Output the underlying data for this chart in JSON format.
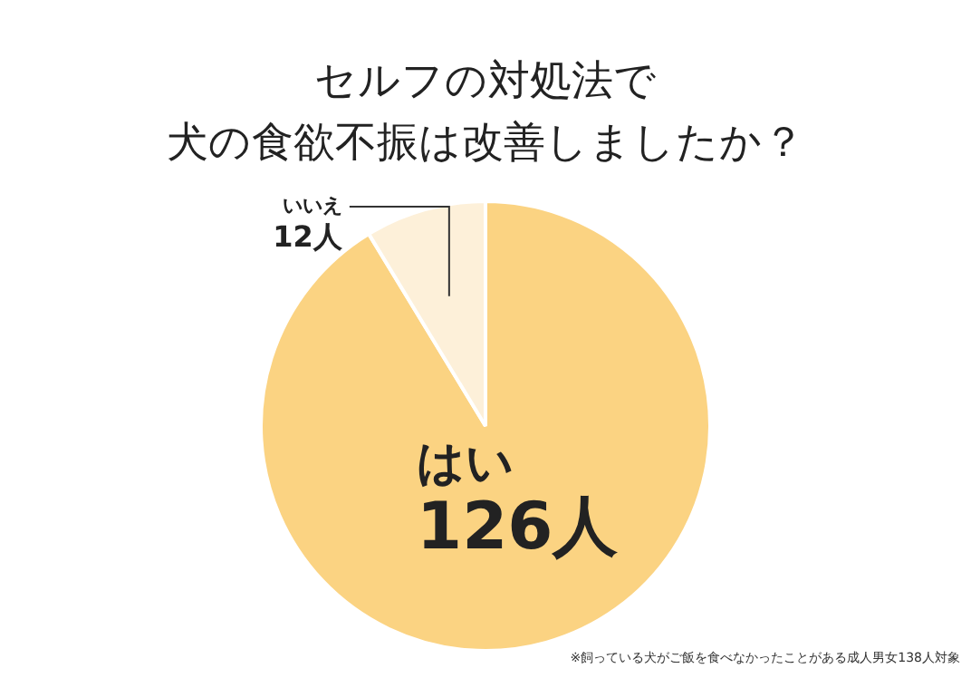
{
  "chart_data": {
    "type": "pie",
    "title": "セルフの対処法で",
    "subtitle": "犬の食欲不振は改善しましたか？",
    "categories": [
      "はい",
      "いいえ"
    ],
    "values": [
      126,
      12
    ],
    "value_labels": [
      "126人",
      "12人"
    ],
    "colors": [
      "#fbd382",
      "#fdf0d9"
    ],
    "legend": false,
    "annotations": [
      "※飼っている犬がご飯を食べなかったことがある成人男女138人対象"
    ]
  }
}
